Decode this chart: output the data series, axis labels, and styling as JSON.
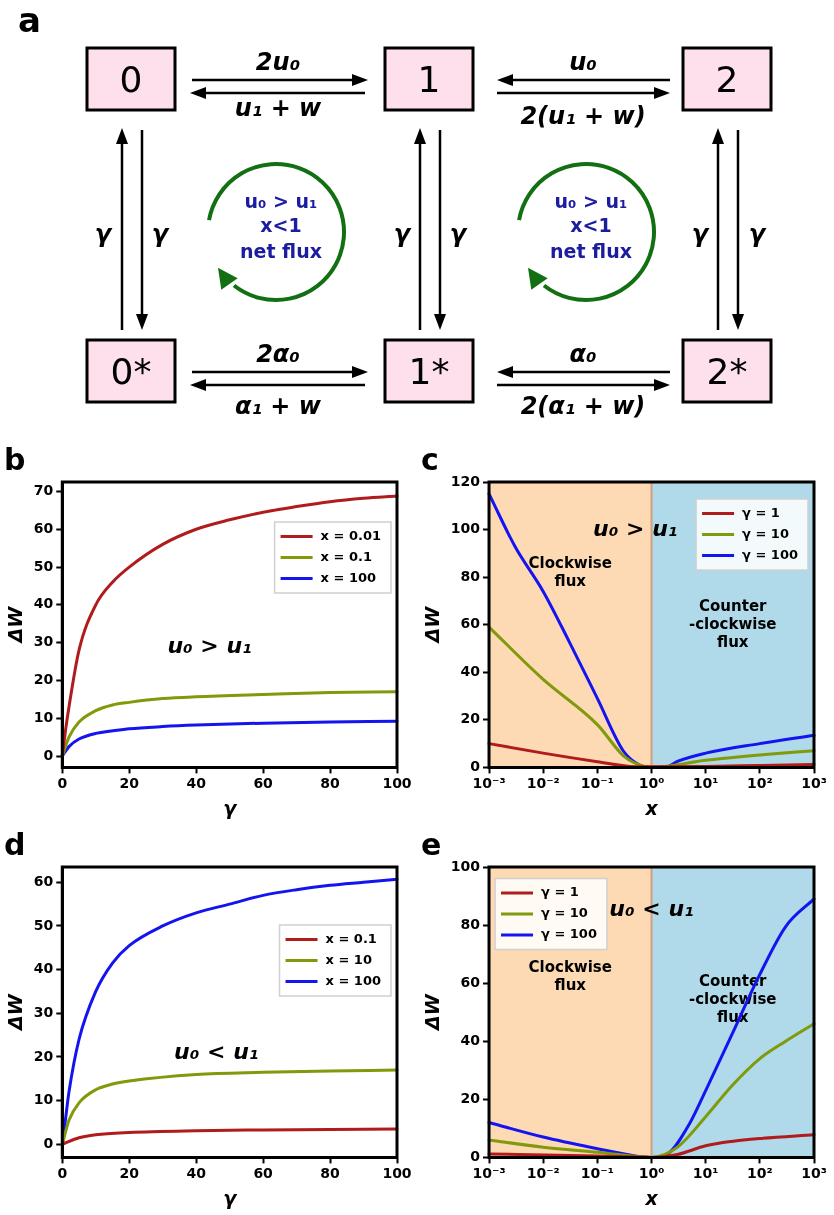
{
  "chart_data": [
    {
      "type": "other",
      "title": "a",
      "annotations": [
        "0",
        "1",
        "2",
        "0*",
        "1*",
        "2*",
        "2u₀",
        "u₁ + w",
        "u₀",
        "2(u₁ + w)",
        "2α₀",
        "α₁ + w",
        "α₀",
        "2(α₁ + w)",
        "γ",
        "γ",
        "γ",
        "γ",
        "γ",
        "γ",
        "u₀ > u₁",
        "x<1",
        "net flux",
        "u₀ > u₁",
        "x<1",
        "net flux"
      ]
    },
    {
      "type": "line",
      "title": "b",
      "xlabel": "γ",
      "ylabel": "ΔW",
      "xlim": [
        0,
        100
      ],
      "xticks": [
        0,
        20,
        40,
        60,
        80,
        100
      ],
      "ylim": [
        -3,
        72.5
      ],
      "yticks": [
        0,
        10,
        20,
        30,
        40,
        50,
        60,
        70
      ],
      "legend": "top right",
      "annotations": [
        "u₀ > u₁"
      ],
      "series": [
        {
          "name": "x = 0.01",
          "color": "#b01c1c",
          "x": [
            0,
            1,
            2,
            5,
            10,
            15,
            20,
            30,
            40,
            50,
            60,
            70,
            80,
            90,
            100
          ],
          "values": [
            0,
            7,
            13,
            28,
            40,
            46,
            50,
            56,
            60,
            62.5,
            64.5,
            66,
            67.3,
            68.2,
            68.8
          ]
        },
        {
          "name": "x = 0.1",
          "color": "#7f9a0a",
          "x": [
            0,
            2,
            5,
            10,
            15,
            20,
            30,
            40,
            60,
            80,
            100
          ],
          "values": [
            0,
            5,
            9,
            12,
            13.5,
            14.2,
            15.2,
            15.7,
            16.3,
            16.8,
            17
          ]
        },
        {
          "name": "x = 100",
          "color": "#1414f0",
          "x": [
            0,
            2,
            5,
            10,
            20,
            30,
            40,
            60,
            80,
            100
          ],
          "values": [
            0,
            2.5,
            4.5,
            6,
            7.2,
            7.8,
            8.2,
            8.7,
            9,
            9.2
          ]
        }
      ]
    },
    {
      "type": "line",
      "title": "c",
      "xlabel": "x",
      "ylabel": "ΔW",
      "log": "x",
      "xlim": [
        0.001,
        1000
      ],
      "xticks": [
        {
          "value": 0.001,
          "label": "10⁻³"
        },
        {
          "value": 0.01,
          "label": "10⁻²"
        },
        {
          "value": 0.1,
          "label": "10⁻¹"
        },
        {
          "value": 1,
          "label": "10⁰"
        },
        {
          "value": 10,
          "label": "10¹"
        },
        {
          "value": 100,
          "label": "10²"
        },
        {
          "value": 1000,
          "label": "10³"
        }
      ],
      "ylim": [
        0,
        120
      ],
      "yticks": [
        0,
        20,
        40,
        60,
        80,
        100,
        120
      ],
      "legend": "top right",
      "annotations": [
        "u₀ > u₁"
      ],
      "bands": [
        {
          "axis": "x",
          "from": 0.001,
          "to": 1,
          "label": "Clockwise\nflux",
          "color": "#fdd9b4"
        },
        {
          "axis": "x",
          "from": 1,
          "to": 1000,
          "label": "Counter\n-clockwise\nflux",
          "color": "#b0d9ea"
        }
      ],
      "ref_lines": [
        {
          "axis": "x",
          "value": 1,
          "color": "#d0a080"
        }
      ],
      "series": [
        {
          "name": "γ = 1",
          "color": "#b01c1c",
          "x": [
            0.001,
            0.01,
            0.1,
            0.5,
            1,
            10,
            100,
            1000
          ],
          "values": [
            10,
            6,
            2.4,
            0.3,
            null,
            0.4,
            0.8,
            1.2
          ]
        },
        {
          "name": "γ = 10",
          "color": "#7f9a0a",
          "x": [
            0.001,
            0.01,
            0.1,
            0.3,
            0.6,
            1,
            10,
            100,
            1000
          ],
          "values": [
            59,
            37,
            18,
            5,
            1,
            0,
            3,
            5.2,
            7
          ]
        },
        {
          "name": "γ = 100",
          "color": "#1414f0",
          "x": [
            0.001,
            0.003,
            0.01,
            0.03,
            0.1,
            0.3,
            0.6,
            1,
            2,
            3,
            10,
            100,
            1000
          ],
          "values": [
            115,
            93,
            74,
            53,
            29,
            7,
            1,
            0,
            0.3,
            2.5,
            6,
            10,
            13.5
          ]
        }
      ]
    },
    {
      "type": "line",
      "title": "d",
      "xlabel": "γ",
      "ylabel": "ΔW",
      "xlim": [
        0,
        100
      ],
      "xticks": [
        0,
        20,
        40,
        60,
        80,
        100
      ],
      "ylim": [
        -3,
        63.5
      ],
      "yticks": [
        0,
        10,
        20,
        30,
        40,
        50,
        60
      ],
      "legend": "top right",
      "annotations": [
        "u₀ < u₁"
      ],
      "series": [
        {
          "name": "x = 0.1",
          "color": "#b01c1c",
          "x": [
            0,
            5,
            10,
            20,
            40,
            60,
            80,
            100
          ],
          "values": [
            0,
            1.5,
            2.2,
            2.7,
            3.1,
            3.3,
            3.4,
            3.5
          ]
        },
        {
          "name": "x = 10",
          "color": "#7f9a0a",
          "x": [
            0,
            2,
            5,
            10,
            15,
            20,
            40,
            60,
            80,
            100
          ],
          "values": [
            0,
            5.5,
            9.5,
            12.5,
            13.8,
            14.5,
            16,
            16.5,
            16.8,
            17
          ]
        },
        {
          "name": "x = 100",
          "color": "#1414f0",
          "x": [
            0,
            1,
            2,
            5,
            10,
            15,
            20,
            30,
            40,
            50,
            60,
            70,
            80,
            90,
            100
          ],
          "values": [
            0,
            6,
            12,
            24,
            35,
            41.5,
            45.5,
            50,
            53,
            55,
            57,
            58.3,
            59.3,
            60,
            60.7
          ]
        }
      ]
    },
    {
      "type": "line",
      "title": "e",
      "xlabel": "x",
      "ylabel": "ΔW",
      "log": "x",
      "xlim": [
        0.001,
        1000
      ],
      "xticks": [
        {
          "value": 0.001,
          "label": "10⁻³"
        },
        {
          "value": 0.01,
          "label": "10⁻²"
        },
        {
          "value": 0.1,
          "label": "10⁻¹"
        },
        {
          "value": 1,
          "label": "10⁰"
        },
        {
          "value": 10,
          "label": "10¹"
        },
        {
          "value": 100,
          "label": "10²"
        },
        {
          "value": 1000,
          "label": "10³"
        }
      ],
      "ylim": [
        0,
        100
      ],
      "yticks": [
        0,
        20,
        40,
        60,
        80,
        100
      ],
      "legend": "top left",
      "annotations": [
        "u₀ < u₁"
      ],
      "bands": [
        {
          "axis": "x",
          "from": 0.001,
          "to": 1,
          "label": "Clockwise\nflux",
          "color": "#fdd9b4"
        },
        {
          "axis": "x",
          "from": 1,
          "to": 1000,
          "label": "Counter\n-clockwise\nflux",
          "color": "#b0d9ea"
        }
      ],
      "ref_lines": [
        {
          "axis": "x",
          "value": 1,
          "color": "#d0a080"
        }
      ],
      "series": [
        {
          "name": "γ = 1",
          "color": "#b01c1c",
          "x": [
            0.001,
            0.1,
            1,
            3,
            10,
            30,
            100,
            1000
          ],
          "values": [
            1.2,
            0.5,
            0,
            1,
            4,
            5.5,
            6.5,
            7.8
          ]
        },
        {
          "name": "γ = 10",
          "color": "#7f9a0a",
          "x": [
            0.001,
            0.01,
            0.1,
            1,
            3,
            10,
            30,
            100,
            300,
            1000
          ],
          "values": [
            6,
            3.5,
            1.8,
            0,
            3.5,
            14,
            24.5,
            34,
            40,
            46
          ]
        },
        {
          "name": "γ = 100",
          "color": "#1414f0",
          "x": [
            0.001,
            0.01,
            0.1,
            0.5,
            1,
            2,
            5,
            10,
            30,
            100,
            300,
            1000
          ],
          "values": [
            12,
            7,
            3,
            0.5,
            0,
            1.2,
            11.5,
            23,
            42,
            63,
            79.5,
            89
          ]
        }
      ]
    }
  ]
}
